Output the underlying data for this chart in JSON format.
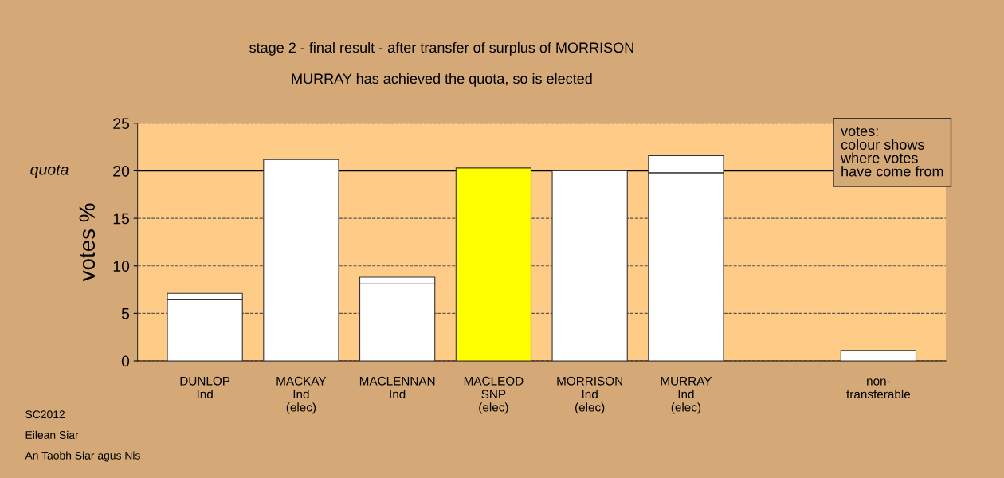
{
  "chart_data": {
    "type": "bar",
    "stacked": true,
    "title": "stage 2 - final result - after transfer of surplus of MORRISON",
    "subtitle": "MURRAY has achieved the quota, so is elected",
    "ylabel": "votes %",
    "categories": [
      "DUNLOP\nInd",
      "MACKAY\nInd\n(elec)",
      "MACLENNAN\nInd",
      "MACLEOD\nSNP\n(elec)",
      "MORRISON\nInd\n(elec)",
      "MURRAY\nInd\n(elec)",
      null,
      "non-\ntransferable"
    ],
    "series": [
      {
        "colors": [
          "#ffffff",
          "#ffffff",
          "#ffffff",
          "#ffff00",
          "#ffffff",
          "#ffffff",
          "#ffffff",
          "#ffffff"
        ],
        "values": [
          6.5,
          21.2,
          8.1,
          20.3,
          20.0,
          19.8,
          null,
          1.1
        ]
      },
      {
        "colors": [
          "#ffffff",
          "#ffffff",
          "#ffffff",
          "#ffff00",
          "#ffffff",
          "#ffffff",
          "#ffffff",
          "#ffffff"
        ],
        "values": [
          0.6,
          null,
          0.7,
          null,
          null,
          1.8,
          null,
          null
        ]
      }
    ],
    "ylim": [
      0,
      25
    ],
    "yticks": [
      0,
      5,
      10,
      15,
      20,
      25
    ],
    "grid": "y",
    "line_style": "dashed",
    "ref_lines": [
      {
        "axis": "y",
        "value": 20,
        "label": "quota",
        "color": "#000000",
        "line_style": "solid"
      }
    ],
    "annotations": [
      "votes:\ncolour shows\nwhere votes\nhave come from",
      "SC2012",
      "Eilean Siar",
      "An Taobh Siar agus Nis"
    ]
  }
}
